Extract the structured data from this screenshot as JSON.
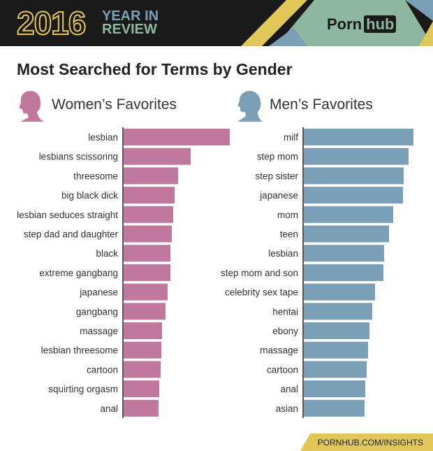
{
  "header": {
    "year": "2016",
    "line1": "YEAR IN",
    "line2": "REVIEW",
    "logo_part1": "Porn",
    "logo_part2": "hub"
  },
  "colors": {
    "women": "#c1789f",
    "men": "#7c9fb8",
    "yellow": "#e1c75a",
    "green": "#8db89f",
    "dark": "#1a1a1a"
  },
  "footer": "PORNHUB.COM/INSIGHTS",
  "chart_data": [
    {
      "type": "bar",
      "orientation": "horizontal",
      "title": "Most Searched for Terms by Gender",
      "subtitle": "Women’s Favorites",
      "icon": "woman-silhouette-icon",
      "categories": [
        "lesbian",
        "lesbians scissoring",
        "threesome",
        "big black dick",
        "lesbian seduces straight",
        "step dad and daughter",
        "black",
        "extreme gangbang",
        "japanese",
        "gangbang",
        "massage",
        "lesbian threesome",
        "cartoon",
        "squirting orgasm",
        "anal"
      ],
      "values": [
        152,
        96,
        78,
        73,
        71,
        69,
        67,
        67,
        63,
        60,
        55,
        54,
        53,
        51,
        50
      ],
      "color": "#c1789f"
    },
    {
      "type": "bar",
      "orientation": "horizontal",
      "subtitle": "Men’s Favorites",
      "icon": "man-silhouette-icon",
      "categories": [
        "milf",
        "step mom",
        "step sister",
        "japanese",
        "mom",
        "teen",
        "lesbian",
        "step mom and son",
        "celebrity sex tape",
        "hentai",
        "ebony",
        "massage",
        "cartoon",
        "anal",
        "asian"
      ],
      "values": [
        157,
        150,
        143,
        142,
        128,
        122,
        115,
        114,
        102,
        98,
        94,
        92,
        90,
        88,
        87
      ],
      "color": "#7c9fb8"
    }
  ]
}
